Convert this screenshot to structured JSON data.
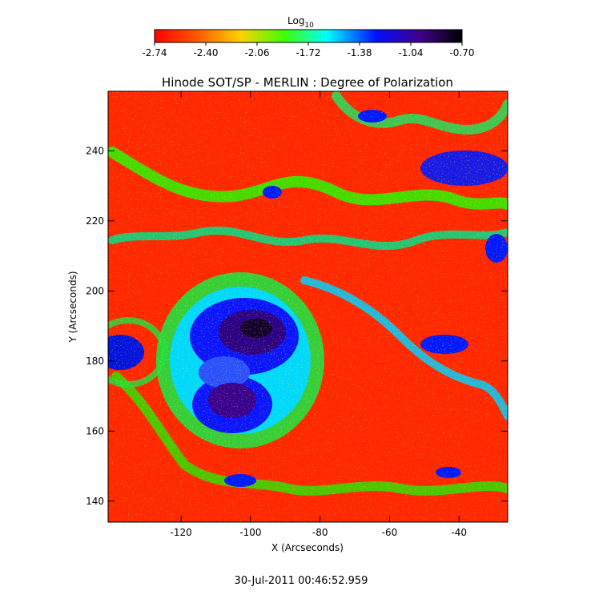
{
  "colorbar": {
    "label_main": "Log",
    "label_sub": "10",
    "ticks": [
      "-2.74",
      "-2.40",
      "-2.06",
      "-1.72",
      "-1.38",
      "-1.04",
      "-0.70"
    ],
    "range": [
      -2.74,
      -0.7
    ]
  },
  "plot": {
    "title": "Hinode SOT/SP - MERLIN : Degree of Polarization",
    "xlabel": "X (Arcseconds)",
    "ylabel": "Y (Arcseconds)",
    "xticks": [
      "-120",
      "-100",
      "-80",
      "-60",
      "-40"
    ],
    "yticks": [
      "140",
      "160",
      "180",
      "200",
      "220",
      "240"
    ],
    "xrange": [
      -141,
      -26
    ],
    "yrange": [
      134,
      257
    ]
  },
  "footer": {
    "timestamp": "30-Jul-2011 00:46:52.959"
  },
  "colormap": [
    "#ff0000",
    "#ff8000",
    "#ffff00",
    "#00ff00",
    "#00ffff",
    "#0000ff",
    "#4000a0",
    "#000000"
  ]
}
